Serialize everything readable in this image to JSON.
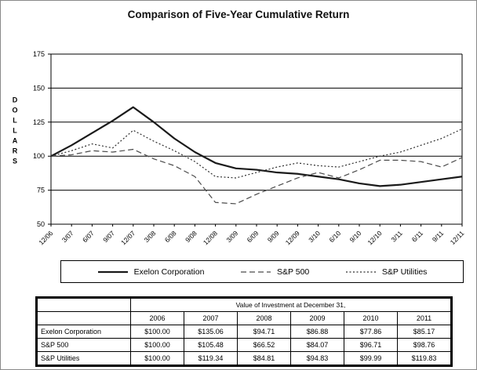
{
  "title": "Comparison of Five-Year Cumulative Return",
  "chart_data": {
    "type": "line",
    "title": "Comparison of Five-Year Cumulative Return",
    "xlabel": "",
    "ylabel": "DOLLARS",
    "ylim": [
      50,
      175
    ],
    "yticks": [
      50,
      75,
      100,
      125,
      150,
      175
    ],
    "grid": true,
    "legend_position": "bottom",
    "x": [
      "12/06",
      "3/07",
      "6/07",
      "9/07",
      "12/07",
      "3/08",
      "6/08",
      "9/08",
      "12/08",
      "3/09",
      "6/09",
      "9/09",
      "12/09",
      "3/10",
      "6/10",
      "9/10",
      "12/10",
      "3/11",
      "6/11",
      "9/11",
      "12/11"
    ],
    "series": [
      {
        "name": "Exelon Corporation",
        "style": "solid",
        "color": "#1a1a1a",
        "values": [
          100,
          108,
          117,
          126,
          136,
          125,
          113,
          103,
          95,
          91,
          90,
          88,
          87,
          85,
          83,
          80,
          78,
          79,
          81,
          83,
          85
        ]
      },
      {
        "name": "S&P 500",
        "style": "dashed",
        "color": "#4a4a4a",
        "values": [
          100,
          101,
          104,
          103,
          105,
          98,
          93,
          85,
          66,
          65,
          72,
          78,
          84,
          88,
          84,
          90,
          97,
          97,
          96,
          92,
          99
        ]
      },
      {
        "name": "S&P Utilities",
        "style": "dotted",
        "color": "#2e2e2e",
        "values": [
          100,
          104,
          109,
          106,
          119,
          111,
          104,
          96,
          85,
          84,
          88,
          92,
          95,
          93,
          92,
          96,
          100,
          103,
          108,
          113,
          120
        ]
      }
    ]
  },
  "table": {
    "caption": "Value of Investment at December 31,",
    "years": [
      "2006",
      "2007",
      "2008",
      "2009",
      "2010",
      "2011"
    ],
    "rows": [
      {
        "label": "Exelon Corporation",
        "values": [
          "$100.00",
          "$135.06",
          "$94.71",
          "$86.88",
          "$77.86",
          "$85.17"
        ]
      },
      {
        "label": "S&P 500",
        "values": [
          "$100.00",
          "$105.48",
          "$66.52",
          "$84.07",
          "$96.71",
          "$98.76"
        ]
      },
      {
        "label": "S&P Utilities",
        "values": [
          "$100.00",
          "$119.34",
          "$84.81",
          "$94.83",
          "$99.99",
          "$119.83"
        ]
      }
    ]
  }
}
